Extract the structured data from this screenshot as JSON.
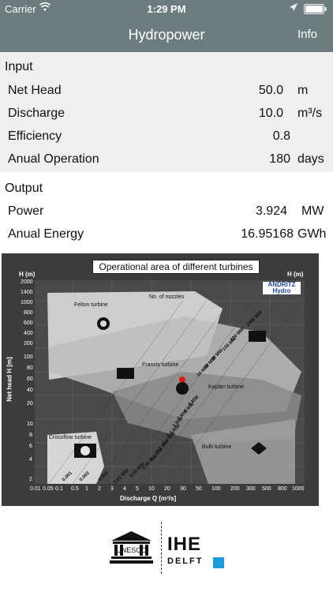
{
  "status_bar": {
    "carrier": "Carrier",
    "time": "1:29 PM"
  },
  "nav": {
    "title": "Hydropower",
    "info_label": "Info"
  },
  "input": {
    "header": "Input",
    "rows": [
      {
        "label": "Net Head",
        "value": "50.0",
        "unit": "m"
      },
      {
        "label": "Discharge",
        "value": "10.0",
        "unit": "m³/s"
      },
      {
        "label": "Efficiency",
        "value": "0.8",
        "unit": ""
      },
      {
        "label": "Anual Operation",
        "value": "180",
        "unit": "days"
      }
    ]
  },
  "output": {
    "header": "Output",
    "rows": [
      {
        "label": "Power",
        "value": "3.924",
        "unit": "MW"
      },
      {
        "label": "Anual Energy",
        "value": "16.95168",
        "unit": "GWh"
      }
    ]
  },
  "turbine_chart": {
    "title": "Operational area of different turbines",
    "ylabel": "Net head H [m]",
    "xlabel": "Discharge Q [m³/s]",
    "h_unit": "H (m)",
    "brand": "ANDRITZ Hydro",
    "y_ticks": [
      "2000",
      "1400",
      "1000",
      "800",
      "600",
      "400",
      "200",
      "100",
      "80",
      "60",
      "40",
      "20",
      "10",
      "8",
      "6",
      "4",
      "2"
    ],
    "x_ticks": [
      "0.01",
      "0.05",
      "0.1",
      "0.5",
      "1",
      "2",
      "3",
      "4",
      "5",
      "10",
      "20",
      "30",
      "50",
      "100",
      "200",
      "300",
      "500",
      "800",
      "1000"
    ],
    "turbines": [
      "Felton turbine",
      "Francis turbine",
      "Kaplan turbine",
      "Crossflow turbine",
      "Bulb turbine"
    ],
    "nozzles_label": "No. of nozzles",
    "power_labels": [
      "2000 MW",
      "200 MW",
      "100 MW",
      "40 MW",
      "20 MW",
      "10 MW",
      "8 MW",
      "4 MW",
      "2 MW",
      "1 MW",
      "0.6 MW",
      "0.4 MW",
      "0.2 MW",
      "0.1 MW",
      "0.05 MW",
      "0.02 MW",
      "0.01 MW",
      "0.005",
      "0.002",
      "0.001"
    ]
  },
  "footer": {
    "logo_text": "UNESCO",
    "ihe": "IHE",
    "delft": "DELFT",
    "ihe_color": "#1e9be0"
  },
  "colors": {
    "nav_bar": "#6b7d7e",
    "input_bg": "#efeff0"
  }
}
